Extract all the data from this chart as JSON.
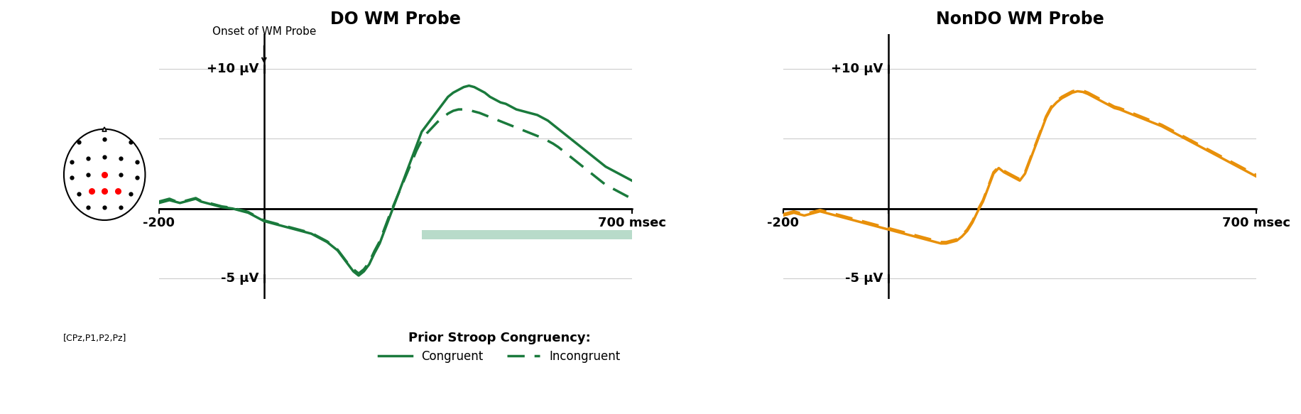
{
  "title_left": "DO WM Probe",
  "title_right": "NonDO WM Probe",
  "xlim": [
    -200,
    700
  ],
  "ylim": [
    -6.5,
    12.5
  ],
  "ylabel_pos": "+10 μV",
  "ylabel_neg": "-5 μV",
  "xlabel": "msec",
  "onset_label": "Onset of WM Probe",
  "legend_title": "Prior Stroop Congruency:",
  "legend_solid": "Congruent",
  "legend_dashed": "Incongruent",
  "electrode_label": "[CPz,P1,P2,Pz]",
  "green_color": "#1a7a3c",
  "orange_color": "#e8900a",
  "shading_color": "#7fbf9f",
  "shading_alpha": 0.55,
  "shading_start": 300,
  "shading_end": 700,
  "shading_y": -2.2,
  "shading_height": 0.65,
  "background_color": "#ffffff",
  "grid_color": "#cccccc",
  "figsize": [
    18.32,
    5.83
  ],
  "dpi": 100,
  "do_congruent_x": [
    -200,
    -190,
    -180,
    -170,
    -160,
    -150,
    -140,
    -130,
    -120,
    -110,
    -100,
    -90,
    -80,
    -70,
    -60,
    -50,
    -40,
    -30,
    -20,
    -10,
    0,
    10,
    20,
    30,
    40,
    50,
    60,
    70,
    80,
    90,
    100,
    110,
    120,
    130,
    140,
    150,
    160,
    170,
    180,
    190,
    200,
    210,
    220,
    230,
    240,
    250,
    260,
    270,
    280,
    290,
    300,
    310,
    320,
    330,
    340,
    350,
    360,
    370,
    380,
    390,
    400,
    410,
    420,
    430,
    440,
    450,
    460,
    470,
    480,
    490,
    500,
    510,
    520,
    530,
    540,
    550,
    560,
    570,
    580,
    590,
    600,
    610,
    620,
    630,
    640,
    650,
    660,
    670,
    680,
    690,
    700
  ],
  "do_congruent_y": [
    0.4,
    0.5,
    0.6,
    0.5,
    0.4,
    0.5,
    0.6,
    0.7,
    0.5,
    0.4,
    0.3,
    0.2,
    0.1,
    0.05,
    0.0,
    -0.1,
    -0.2,
    -0.3,
    -0.5,
    -0.7,
    -0.9,
    -1.0,
    -1.1,
    -1.2,
    -1.3,
    -1.4,
    -1.5,
    -1.6,
    -1.7,
    -1.8,
    -2.0,
    -2.2,
    -2.4,
    -2.7,
    -3.0,
    -3.5,
    -4.0,
    -4.5,
    -4.8,
    -4.5,
    -4.0,
    -3.2,
    -2.5,
    -1.5,
    -0.5,
    0.5,
    1.5,
    2.5,
    3.5,
    4.5,
    5.5,
    6.0,
    6.5,
    7.0,
    7.5,
    8.0,
    8.3,
    8.5,
    8.7,
    8.8,
    8.7,
    8.5,
    8.3,
    8.0,
    7.8,
    7.6,
    7.5,
    7.3,
    7.1,
    7.0,
    6.9,
    6.8,
    6.7,
    6.5,
    6.3,
    6.0,
    5.7,
    5.4,
    5.1,
    4.8,
    4.5,
    4.2,
    3.9,
    3.6,
    3.3,
    3.0,
    2.8,
    2.6,
    2.4,
    2.2,
    2.0
  ],
  "do_incongruent_y": [
    0.5,
    0.6,
    0.7,
    0.55,
    0.45,
    0.55,
    0.65,
    0.75,
    0.55,
    0.45,
    0.35,
    0.25,
    0.15,
    0.1,
    0.05,
    -0.05,
    -0.15,
    -0.25,
    -0.45,
    -0.65,
    -0.85,
    -0.95,
    -1.05,
    -1.15,
    -1.25,
    -1.35,
    -1.45,
    -1.55,
    -1.65,
    -1.75,
    -1.95,
    -2.15,
    -2.35,
    -2.65,
    -2.95,
    -3.45,
    -3.95,
    -4.35,
    -4.65,
    -4.35,
    -3.85,
    -3.05,
    -2.35,
    -1.35,
    -0.35,
    0.55,
    1.45,
    2.35,
    3.25,
    4.15,
    4.9,
    5.4,
    5.8,
    6.2,
    6.5,
    6.8,
    7.0,
    7.1,
    7.1,
    7.05,
    6.95,
    6.85,
    6.7,
    6.55,
    6.4,
    6.25,
    6.1,
    5.95,
    5.8,
    5.65,
    5.5,
    5.35,
    5.2,
    5.05,
    4.85,
    4.65,
    4.4,
    4.1,
    3.8,
    3.5,
    3.2,
    2.9,
    2.6,
    2.3,
    2.0,
    1.7,
    1.5,
    1.3,
    1.1,
    0.9,
    0.7
  ],
  "nondo_congruent_x": [
    -200,
    -190,
    -180,
    -170,
    -160,
    -150,
    -140,
    -130,
    -120,
    -110,
    -100,
    -90,
    -80,
    -70,
    -60,
    -50,
    -40,
    -30,
    -20,
    -10,
    0,
    10,
    20,
    30,
    40,
    50,
    60,
    70,
    80,
    90,
    100,
    110,
    120,
    130,
    140,
    150,
    160,
    170,
    180,
    190,
    200,
    210,
    220,
    230,
    240,
    250,
    260,
    270,
    280,
    290,
    300,
    310,
    320,
    330,
    340,
    350,
    360,
    370,
    380,
    390,
    400,
    410,
    420,
    430,
    440,
    450,
    460,
    470,
    480,
    490,
    500,
    510,
    520,
    530,
    540,
    550,
    560,
    570,
    580,
    590,
    600,
    610,
    620,
    630,
    640,
    650,
    660,
    670,
    680,
    690,
    700
  ],
  "nondo_congruent_y": [
    -0.5,
    -0.4,
    -0.3,
    -0.4,
    -0.5,
    -0.4,
    -0.3,
    -0.2,
    -0.3,
    -0.4,
    -0.5,
    -0.6,
    -0.7,
    -0.8,
    -0.9,
    -1.0,
    -1.1,
    -1.2,
    -1.3,
    -1.4,
    -1.5,
    -1.6,
    -1.7,
    -1.8,
    -1.9,
    -2.0,
    -2.1,
    -2.2,
    -2.3,
    -2.4,
    -2.5,
    -2.5,
    -2.4,
    -2.3,
    -2.0,
    -1.6,
    -1.0,
    -0.2,
    0.5,
    1.5,
    2.5,
    2.9,
    2.6,
    2.4,
    2.2,
    2.0,
    2.5,
    3.5,
    4.5,
    5.5,
    6.5,
    7.2,
    7.6,
    7.9,
    8.1,
    8.3,
    8.4,
    8.35,
    8.2,
    8.0,
    7.8,
    7.6,
    7.4,
    7.2,
    7.1,
    6.95,
    6.8,
    6.65,
    6.5,
    6.35,
    6.2,
    6.05,
    5.9,
    5.7,
    5.5,
    5.3,
    5.1,
    4.9,
    4.7,
    4.5,
    4.3,
    4.1,
    3.9,
    3.7,
    3.5,
    3.3,
    3.1,
    2.9,
    2.7,
    2.5,
    2.3
  ],
  "nondo_incongruent_y": [
    -0.4,
    -0.3,
    -0.2,
    -0.3,
    -0.4,
    -0.3,
    -0.2,
    -0.1,
    -0.2,
    -0.3,
    -0.4,
    -0.5,
    -0.6,
    -0.7,
    -0.8,
    -0.9,
    -1.0,
    -1.1,
    -1.2,
    -1.3,
    -1.4,
    -1.5,
    -1.6,
    -1.7,
    -1.8,
    -1.9,
    -2.0,
    -2.1,
    -2.2,
    -2.3,
    -2.4,
    -2.4,
    -2.3,
    -2.2,
    -1.9,
    -1.5,
    -0.9,
    -0.1,
    0.6,
    1.6,
    2.6,
    3.0,
    2.7,
    2.5,
    2.3,
    2.1,
    2.6,
    3.6,
    4.6,
    5.6,
    6.6,
    7.3,
    7.7,
    8.0,
    8.2,
    8.4,
    8.5,
    8.45,
    8.3,
    8.1,
    7.9,
    7.7,
    7.5,
    7.3,
    7.2,
    7.05,
    6.9,
    6.75,
    6.6,
    6.45,
    6.3,
    6.15,
    6.0,
    5.8,
    5.6,
    5.4,
    5.2,
    5.0,
    4.8,
    4.6,
    4.4,
    4.2,
    4.0,
    3.8,
    3.6,
    3.4,
    3.2,
    3.0,
    2.8,
    2.6,
    2.4
  ],
  "electrode_positions": [
    [
      -0.8,
      1.0
    ],
    [
      0.0,
      1.1
    ],
    [
      0.8,
      1.0
    ],
    [
      -1.0,
      0.4
    ],
    [
      -0.5,
      0.5
    ],
    [
      0.0,
      0.55
    ],
    [
      0.5,
      0.5
    ],
    [
      1.0,
      0.4
    ],
    [
      -1.0,
      -0.1
    ],
    [
      -0.5,
      0.0
    ],
    [
      0.0,
      0.0
    ],
    [
      0.5,
      0.0
    ],
    [
      1.0,
      -0.1
    ],
    [
      -0.8,
      -0.6
    ],
    [
      -0.4,
      -0.5
    ],
    [
      0.0,
      -0.5
    ],
    [
      0.4,
      -0.5
    ],
    [
      0.8,
      -0.6
    ],
    [
      -0.5,
      -1.0
    ],
    [
      0.0,
      -1.0
    ],
    [
      0.5,
      -1.0
    ]
  ],
  "electrode_highlighted": [
    [
      0.0,
      0.0
    ],
    [
      -0.4,
      -0.5
    ],
    [
      0.4,
      -0.5
    ],
    [
      0.0,
      -0.5
    ]
  ]
}
